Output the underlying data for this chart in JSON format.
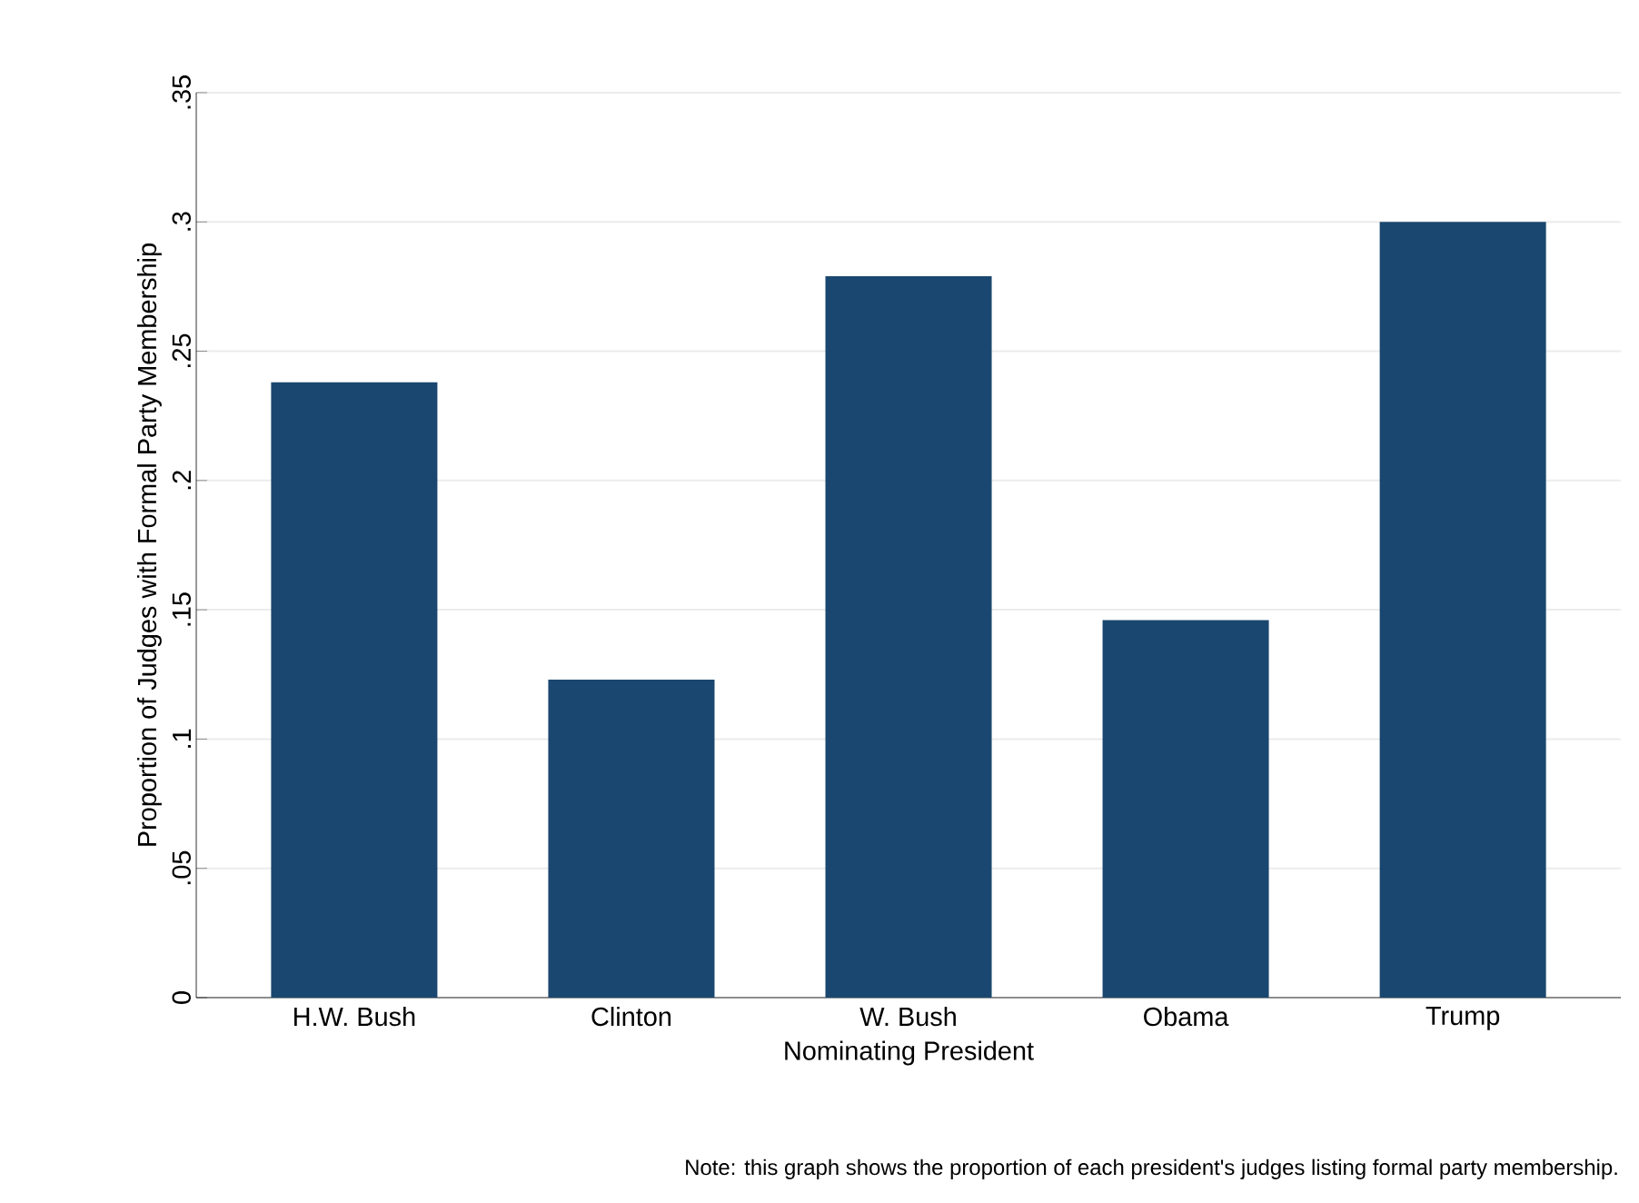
{
  "chart_data": {
    "type": "bar",
    "xlabel": "Nominating President",
    "ylabel": "Proportion of Judges with Formal Party Membership",
    "categories": [
      "H.W. Bush",
      "Clinton",
      "W. Bush",
      "Obama",
      "Trump"
    ],
    "values": [
      0.238,
      0.123,
      0.279,
      0.146,
      0.3
    ],
    "color": "#1a476f",
    "ylim": [
      0,
      0.35
    ],
    "yticks": [
      0,
      {
        "value": 0.05,
        "label": ".05"
      },
      {
        "value": 0.1,
        "label": ".1"
      },
      {
        "value": 0.15,
        "label": ".15"
      },
      {
        "value": 0.2,
        "label": ".2"
      },
      {
        "value": 0.25,
        "label": ".25"
      },
      {
        "value": 0.3,
        "label": ".3"
      },
      {
        "value": 0.35,
        "label": ".35"
      }
    ],
    "grid": "y",
    "annotations": [
      "Note: this graph shows the proportion of each president's judges listing formal party membership."
    ]
  }
}
